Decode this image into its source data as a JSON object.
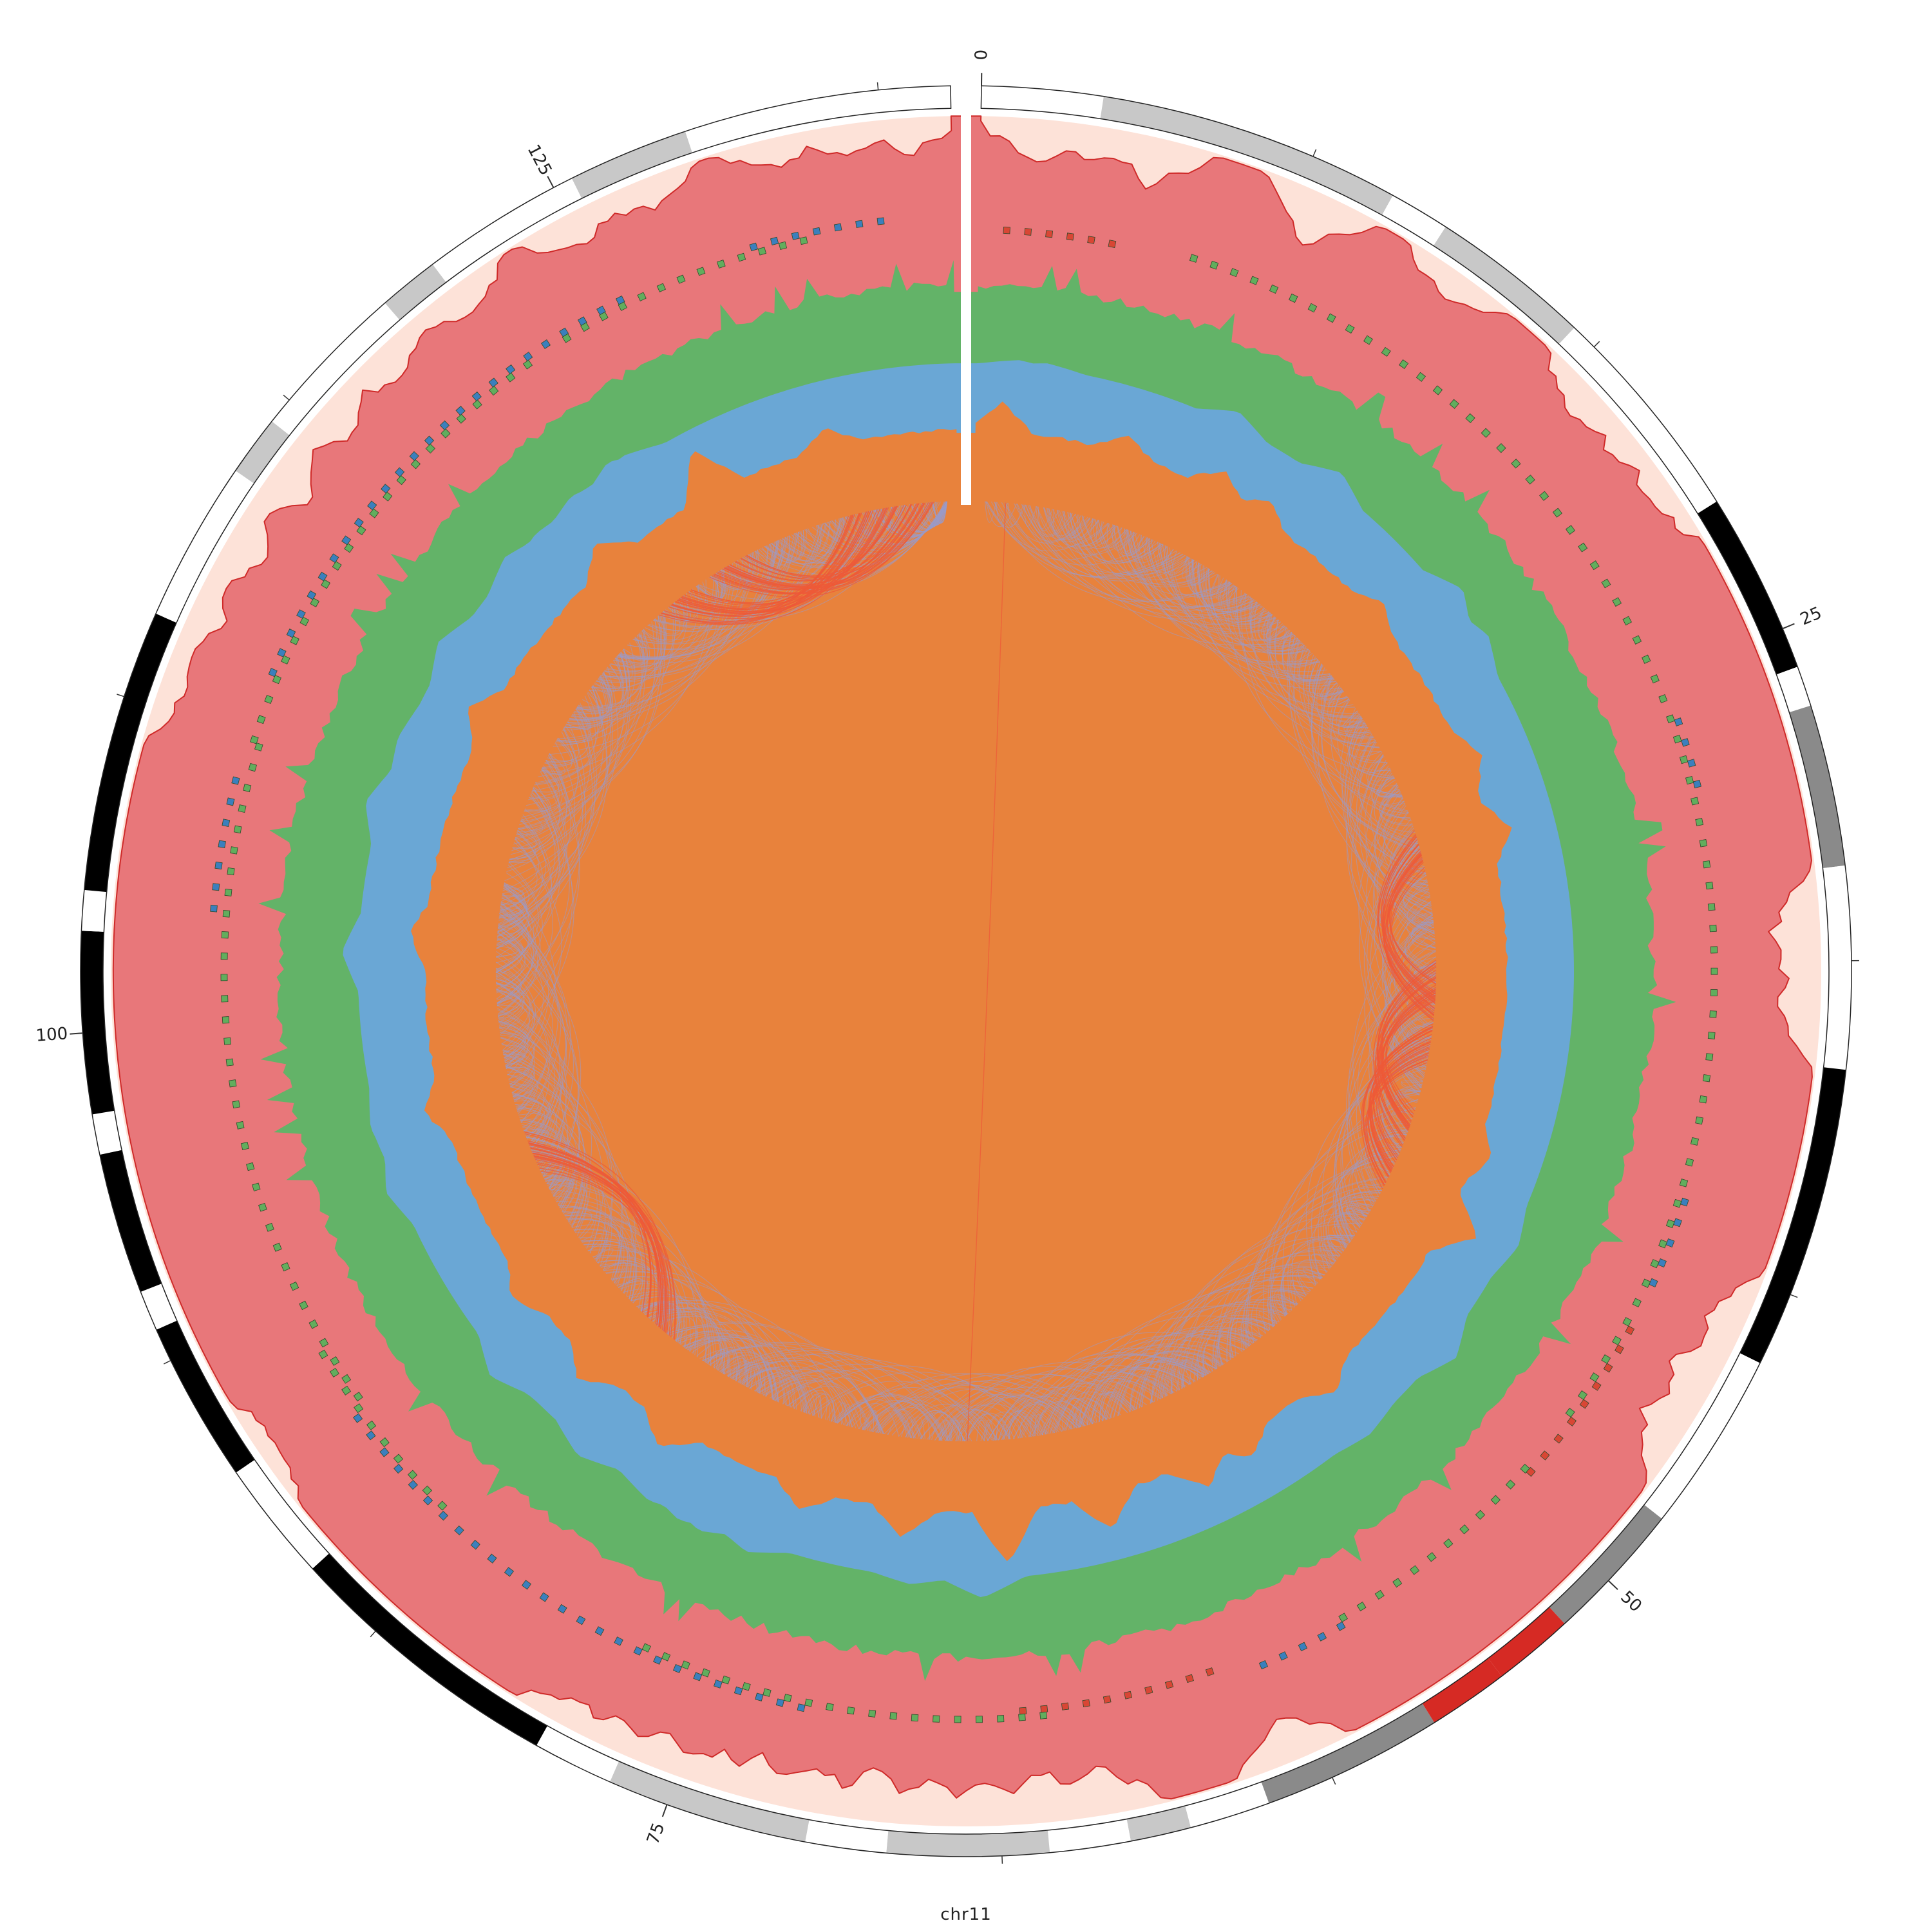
{
  "chart_data": {
    "type": "circos",
    "chromosome": "chr11",
    "length_mb": 135.1,
    "axis": {
      "major_ticks_mb": [
        0,
        25,
        50,
        75,
        100,
        125
      ],
      "minor_ticks_mb": [
        0,
        8.33,
        16.67,
        25,
        33.33,
        41.67,
        50,
        58.33,
        66.67,
        75,
        83.33,
        91.67,
        100,
        108.33,
        116.67,
        125,
        133.33
      ],
      "tick_labels": [
        "0",
        "25",
        "50",
        "75",
        "100",
        "125"
      ]
    },
    "colors": {
      "cytoband_gneg": "#ffffff",
      "cytoband_gpos25": "#c8c8c8",
      "cytoband_gpos50": "#8a8a8a",
      "cytoband_gpos100": "#000000",
      "centromere": "#d62a24",
      "track1_fill": "#e8777a",
      "track1_line": "#cf2a29",
      "track1_bg": "#fde2d8",
      "track2_bg": "#fdf68a",
      "track2_green": "#62ad5d",
      "track2_blue": "#3b7fbd",
      "track2_red": "#d94634",
      "track3_fill": "#63b368",
      "track3_bg": "#c8dfc5",
      "track4_fill": "#6aa7d5",
      "track4_bg": "#c2d3e5",
      "track5_fill": "#e8823c",
      "track5_bg": "#fad1a6",
      "link_main": "#9b9bc9",
      "link_highlight": "#ee5a38"
    },
    "cytobands": [
      {
        "start": 0,
        "end": 3,
        "stain": "gneg"
      },
      {
        "start": 3,
        "end": 10.5,
        "stain": "gpos25"
      },
      {
        "start": 10.5,
        "end": 12,
        "stain": "gneg"
      },
      {
        "start": 12,
        "end": 16,
        "stain": "gpos25"
      },
      {
        "start": 16,
        "end": 21.5,
        "stain": "gneg"
      },
      {
        "start": 21.5,
        "end": 26,
        "stain": "gpos100"
      },
      {
        "start": 26,
        "end": 27,
        "stain": "gneg"
      },
      {
        "start": 27,
        "end": 31,
        "stain": "gpos50"
      },
      {
        "start": 31,
        "end": 36,
        "stain": "gneg"
      },
      {
        "start": 36,
        "end": 43.5,
        "stain": "gpos100"
      },
      {
        "start": 43.5,
        "end": 48,
        "stain": "gneg"
      },
      {
        "start": 48,
        "end": 51.5,
        "stain": "gpos50"
      },
      {
        "start": 51.5,
        "end": 53.5,
        "stain": "acen"
      },
      {
        "start": 53.5,
        "end": 55.5,
        "stain": "acen"
      },
      {
        "start": 55.5,
        "end": 60,
        "stain": "gpos50"
      },
      {
        "start": 60,
        "end": 62,
        "stain": "gneg"
      },
      {
        "start": 62,
        "end": 63.5,
        "stain": "gpos25"
      },
      {
        "start": 63.5,
        "end": 65.5,
        "stain": "gneg"
      },
      {
        "start": 65.5,
        "end": 69.5,
        "stain": "gpos25"
      },
      {
        "start": 69.5,
        "end": 71.5,
        "stain": "gneg"
      },
      {
        "start": 71.5,
        "end": 76.5,
        "stain": "gpos25"
      },
      {
        "start": 76.5,
        "end": 78.5,
        "stain": "gneg"
      },
      {
        "start": 78.5,
        "end": 85.5,
        "stain": "gpos100"
      },
      {
        "start": 85.5,
        "end": 88.5,
        "stain": "gneg"
      },
      {
        "start": 88.5,
        "end": 92.5,
        "stain": "gpos100"
      },
      {
        "start": 92.5,
        "end": 93.5,
        "stain": "gneg"
      },
      {
        "start": 93.5,
        "end": 97,
        "stain": "gpos100"
      },
      {
        "start": 97,
        "end": 98,
        "stain": "gneg"
      },
      {
        "start": 98,
        "end": 102.5,
        "stain": "gpos100"
      },
      {
        "start": 102.5,
        "end": 103.5,
        "stain": "gneg"
      },
      {
        "start": 103.5,
        "end": 110.5,
        "stain": "gpos100"
      },
      {
        "start": 110.5,
        "end": 114.5,
        "stain": "gneg"
      },
      {
        "start": 114.5,
        "end": 116,
        "stain": "gpos25"
      },
      {
        "start": 116,
        "end": 120,
        "stain": "gneg"
      },
      {
        "start": 120,
        "end": 121.5,
        "stain": "gpos25"
      },
      {
        "start": 121.5,
        "end": 125.5,
        "stain": "gneg"
      },
      {
        "start": 125.5,
        "end": 128.5,
        "stain": "gpos25"
      },
      {
        "start": 128.5,
        "end": 135.1,
        "stain": "gneg"
      }
    ],
    "track1_peaks": [
      {
        "pos": 1.5,
        "h": 0.45
      },
      {
        "pos": 3.0,
        "h": 0.35
      },
      {
        "pos": 4.5,
        "h": 0.5
      },
      {
        "pos": 9.0,
        "h": 0.55
      },
      {
        "pos": 13.0,
        "h": 0.3
      },
      {
        "pos": 17.5,
        "h": 0.35
      },
      {
        "pos": 19.0,
        "h": 0.3
      },
      {
        "pos": 20.5,
        "h": 0.25
      },
      {
        "pos": 32.5,
        "h": 0.5
      },
      {
        "pos": 33.5,
        "h": 0.4
      },
      {
        "pos": 34.5,
        "h": 0.45
      },
      {
        "pos": 43.0,
        "h": 0.4
      },
      {
        "pos": 44.5,
        "h": 0.55
      },
      {
        "pos": 46.0,
        "h": 0.5
      },
      {
        "pos": 59.0,
        "h": 0.45
      },
      {
        "pos": 64.0,
        "h": 0.5
      },
      {
        "pos": 65.5,
        "h": 0.55
      },
      {
        "pos": 67.0,
        "h": 0.45
      },
      {
        "pos": 68.5,
        "h": 0.5
      },
      {
        "pos": 70.0,
        "h": 0.55
      },
      {
        "pos": 71.5,
        "h": 0.5
      },
      {
        "pos": 73.0,
        "h": 0.45
      },
      {
        "pos": 74.0,
        "h": 0.4
      },
      {
        "pos": 75.5,
        "h": 0.35
      },
      {
        "pos": 77.0,
        "h": 0.3
      },
      {
        "pos": 78.0,
        "h": 0.3
      },
      {
        "pos": 88.5,
        "h": 0.2
      },
      {
        "pos": 109.0,
        "h": 0.25
      },
      {
        "pos": 111.0,
        "h": 0.35
      },
      {
        "pos": 113.0,
        "h": 0.45
      },
      {
        "pos": 115.0,
        "h": 0.5
      },
      {
        "pos": 117.0,
        "h": 0.45
      },
      {
        "pos": 119.0,
        "h": 0.4
      },
      {
        "pos": 121.5,
        "h": 0.3
      },
      {
        "pos": 125.0,
        "h": 0.35
      },
      {
        "pos": 127.0,
        "h": 0.3
      },
      {
        "pos": 130.5,
        "h": 0.25
      },
      {
        "pos": 132.5,
        "h": 0.3
      },
      {
        "pos": 134.0,
        "h": 0.35
      }
    ],
    "track2_segments": [
      {
        "start": 6,
        "end": 47,
        "color": "green",
        "lane": "mid"
      },
      {
        "start": 26,
        "end": 28,
        "color": "blue",
        "lane": "outer"
      },
      {
        "start": 40,
        "end": 43,
        "color": "blue",
        "lane": "outer"
      },
      {
        "start": 44,
        "end": 49,
        "color": "red",
        "lane": "outer"
      },
      {
        "start": 49,
        "end": 56,
        "color": "green",
        "lane": "mid"
      },
      {
        "start": 56,
        "end": 59,
        "color": "blue",
        "lane": "outer"
      },
      {
        "start": 60,
        "end": 66,
        "color": "red",
        "lane": "inner"
      },
      {
        "start": 65,
        "end": 77,
        "color": "green",
        "lane": "mid"
      },
      {
        "start": 72,
        "end": 88,
        "color": "blue",
        "lane": "outer"
      },
      {
        "start": 84,
        "end": 90,
        "color": "green",
        "lane": "mid"
      },
      {
        "start": 88,
        "end": 108,
        "color": "green",
        "lane": "inner"
      },
      {
        "start": 103,
        "end": 107,
        "color": "blue",
        "lane": "outer"
      },
      {
        "start": 108,
        "end": 122,
        "color": "green",
        "lane": "mid"
      },
      {
        "start": 110,
        "end": 125,
        "color": "blue",
        "lane": "outer"
      },
      {
        "start": 123,
        "end": 131,
        "color": "green",
        "lane": "mid"
      },
      {
        "start": 129,
        "end": 133,
        "color": "blue",
        "lane": "outer"
      },
      {
        "start": 0.5,
        "end": 4,
        "color": "red",
        "lane": "inner"
      }
    ],
    "track5_peaks": [
      {
        "pos": 1,
        "h": 0.45
      },
      {
        "pos": 6,
        "h": 0.3
      },
      {
        "pos": 10,
        "h": 0.35
      },
      {
        "pos": 12,
        "h": 0.3
      },
      {
        "pos": 18,
        "h": 0.25
      },
      {
        "pos": 25,
        "h": 0.3
      },
      {
        "pos": 28,
        "h": 0.35
      },
      {
        "pos": 41,
        "h": 0.25
      },
      {
        "pos": 44,
        "h": 0.55
      },
      {
        "pos": 52,
        "h": 0.3
      },
      {
        "pos": 56,
        "h": 0.35
      },
      {
        "pos": 58,
        "h": 0.45
      },
      {
        "pos": 62,
        "h": 0.55
      },
      {
        "pos": 66,
        "h": 0.85
      },
      {
        "pos": 70,
        "h": 0.45
      },
      {
        "pos": 74,
        "h": 0.35
      },
      {
        "pos": 80,
        "h": 0.4
      },
      {
        "pos": 84,
        "h": 0.35
      },
      {
        "pos": 88,
        "h": 0.3
      },
      {
        "pos": 96,
        "h": 0.3
      },
      {
        "pos": 103,
        "h": 0.25
      },
      {
        "pos": 112,
        "h": 0.35
      },
      {
        "pos": 120,
        "h": 0.4
      },
      {
        "pos": 125,
        "h": 0.75
      },
      {
        "pos": 130,
        "h": 0.3
      }
    ],
    "highlight_link_clusters": [
      {
        "from": 27,
        "to": 36
      },
      {
        "from": 33,
        "to": 42
      },
      {
        "from": 36,
        "to": 44
      },
      {
        "from": 82,
        "to": 94
      },
      {
        "from": 120,
        "to": 132
      },
      {
        "from": 123,
        "to": 134
      },
      {
        "from": 1,
        "to": 68
      }
    ]
  }
}
